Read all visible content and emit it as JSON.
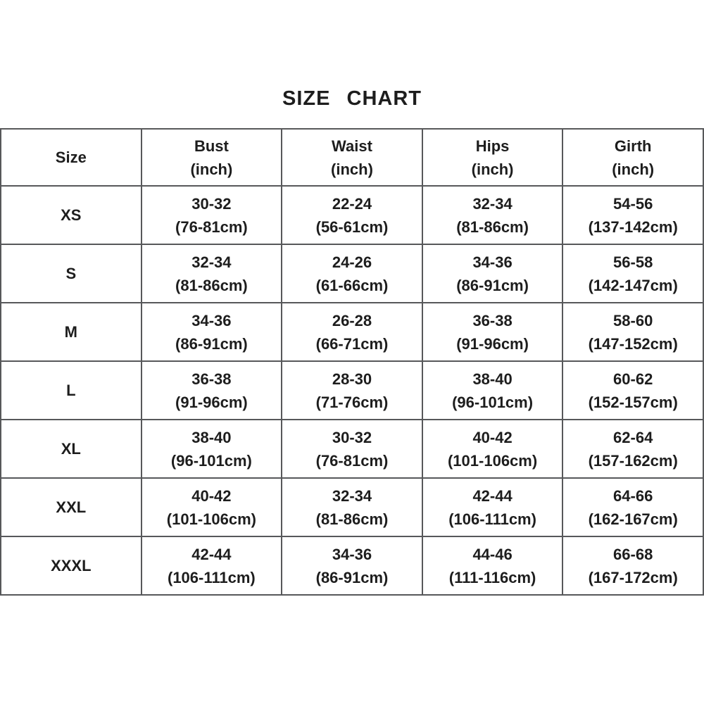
{
  "title": "SIZE CHART",
  "table": {
    "header": {
      "size": "Size",
      "bust": "Bust",
      "bust_unit": "(inch)",
      "waist": "Waist",
      "waist_unit": "(inch)",
      "hips": "Hips",
      "hips_unit": "(inch)",
      "girth": "Girth",
      "girth_unit": "(inch)"
    },
    "rows": [
      {
        "size": "XS",
        "bust": "30-32",
        "bust_cm": "(76-81cm)",
        "waist": "22-24",
        "waist_cm": "(56-61cm)",
        "hips": "32-34",
        "hips_cm": "(81-86cm)",
        "girth": "54-56",
        "girth_cm": "(137-142cm)"
      },
      {
        "size": "S",
        "bust": "32-34",
        "bust_cm": "(81-86cm)",
        "waist": "24-26",
        "waist_cm": "(61-66cm)",
        "hips": "34-36",
        "hips_cm": "(86-91cm)",
        "girth": "56-58",
        "girth_cm": "(142-147cm)"
      },
      {
        "size": "M",
        "bust": "34-36",
        "bust_cm": "(86-91cm)",
        "waist": "26-28",
        "waist_cm": "(66-71cm)",
        "hips": "36-38",
        "hips_cm": "(91-96cm)",
        "girth": "58-60",
        "girth_cm": "(147-152cm)"
      },
      {
        "size": "L",
        "bust": "36-38",
        "bust_cm": "(91-96cm)",
        "waist": "28-30",
        "waist_cm": "(71-76cm)",
        "hips": "38-40",
        "hips_cm": "(96-101cm)",
        "girth": "60-62",
        "girth_cm": "(152-157cm)"
      },
      {
        "size": "XL",
        "bust": "38-40",
        "bust_cm": "(96-101cm)",
        "waist": "30-32",
        "waist_cm": "(76-81cm)",
        "hips": "40-42",
        "hips_cm": "(101-106cm)",
        "girth": "62-64",
        "girth_cm": "(157-162cm)"
      },
      {
        "size": "XXL",
        "bust": "40-42",
        "bust_cm": "(101-106cm)",
        "waist": "32-34",
        "waist_cm": "(81-86cm)",
        "hips": "42-44",
        "hips_cm": "(106-111cm)",
        "girth": "64-66",
        "girth_cm": "(162-167cm)"
      },
      {
        "size": "XXXL",
        "bust": "42-44",
        "bust_cm": "(106-111cm)",
        "waist": "34-36",
        "waist_cm": "(86-91cm)",
        "hips": "44-46",
        "hips_cm": "(111-116cm)",
        "girth": "66-68",
        "girth_cm": "(167-172cm)"
      }
    ]
  },
  "colors": {
    "border": "#57585a",
    "text": "#1d1d1d",
    "background": "#ffffff"
  }
}
